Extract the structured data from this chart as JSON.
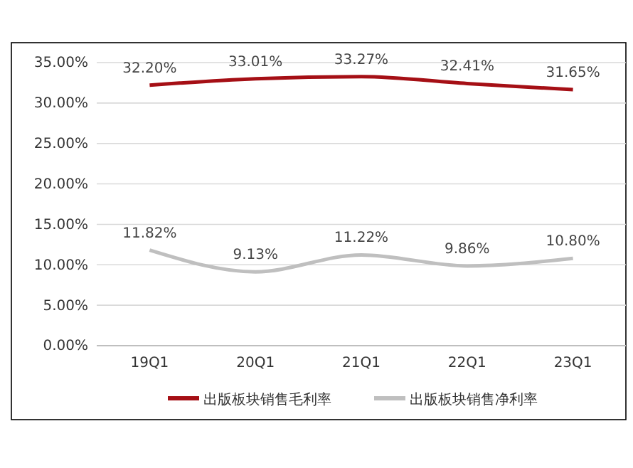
{
  "chart_data": {
    "type": "line",
    "categories": [
      "19Q1",
      "20Q1",
      "21Q1",
      "22Q1",
      "23Q1"
    ],
    "series": [
      {
        "name": "出版板块销售毛利率",
        "color": "#a50f15",
        "values": [
          32.2,
          33.01,
          33.27,
          32.41,
          31.65
        ],
        "value_labels": [
          "32.20%",
          "33.01%",
          "33.27%",
          "32.41%",
          "31.65%"
        ]
      },
      {
        "name": "出版板块销售净利率",
        "color": "#bfbfbf",
        "values": [
          11.82,
          9.13,
          11.22,
          9.86,
          10.8
        ],
        "value_labels": [
          "11.82%",
          "9.13%",
          "11.22%",
          "9.86%",
          "10.80%"
        ]
      }
    ],
    "ylim": [
      0,
      35
    ],
    "yticks": [
      {
        "value": 0,
        "label": "0.00%"
      },
      {
        "value": 5,
        "label": "5.00%"
      },
      {
        "value": 10,
        "label": "10.00%"
      },
      {
        "value": 15,
        "label": "15.00%"
      },
      {
        "value": 20,
        "label": "20.00%"
      },
      {
        "value": 25,
        "label": "25.00%"
      },
      {
        "value": 30,
        "label": "30.00%"
      },
      {
        "value": 35,
        "label": "35.00%"
      }
    ],
    "grid": "y",
    "legend": "bottom",
    "marker": "none",
    "line_style": "solid"
  }
}
